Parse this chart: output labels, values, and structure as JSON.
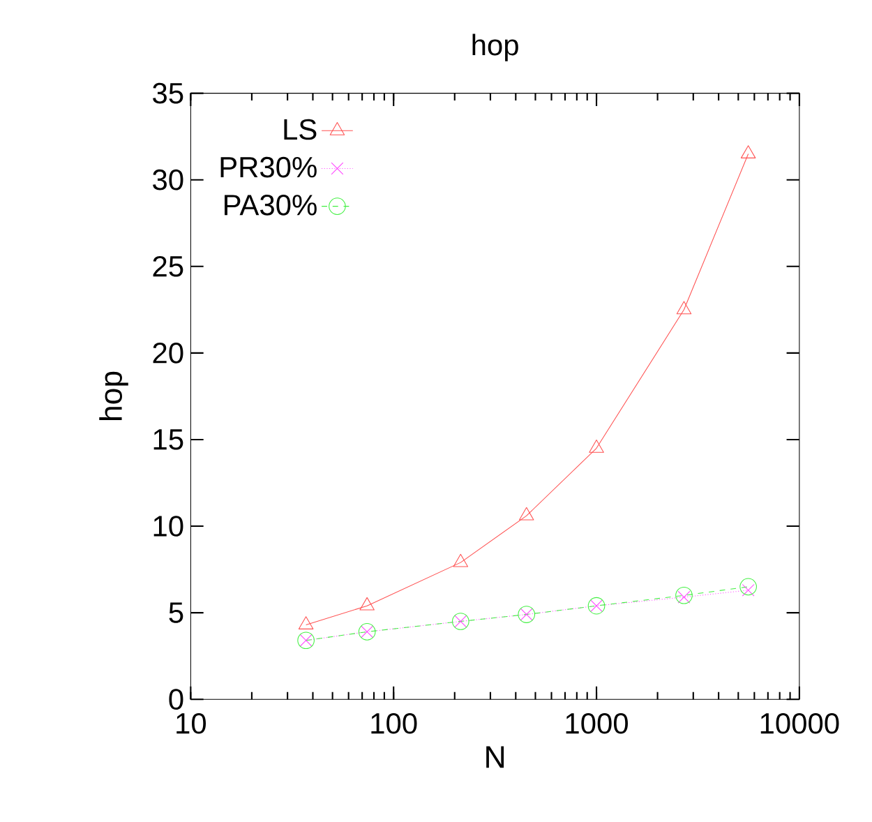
{
  "chart_data": {
    "type": "line",
    "title": "hop",
    "xlabel": "N",
    "ylabel": "hop",
    "log": "x",
    "x": [
      37,
      74,
      214,
      452,
      1000,
      2700,
      5600
    ],
    "series": [
      {
        "name": "LS",
        "color": "#ff5050",
        "marker": "triangle",
        "line_style": "solid",
        "values": [
          4.3,
          5.4,
          7.9,
          10.6,
          14.5,
          22.5,
          31.5
        ]
      },
      {
        "name": "PR30%",
        "color": "#ff40ff",
        "marker": "cross",
        "line_style": "dotted",
        "values": [
          3.4,
          3.9,
          4.5,
          4.9,
          5.4,
          5.9,
          6.3
        ]
      },
      {
        "name": "PA30%",
        "color": "#40f040",
        "marker": "circle",
        "line_style": "dashed",
        "values": [
          3.4,
          3.9,
          4.5,
          4.9,
          5.4,
          6.0,
          6.5
        ]
      }
    ],
    "xlim": [
      10,
      10000
    ],
    "ylim": [
      0,
      35
    ],
    "xticks": [
      10,
      100,
      1000,
      10000
    ],
    "yticks": [
      0,
      5,
      10,
      15,
      20,
      25,
      30,
      35
    ],
    "legend": "top left",
    "grid": false
  }
}
